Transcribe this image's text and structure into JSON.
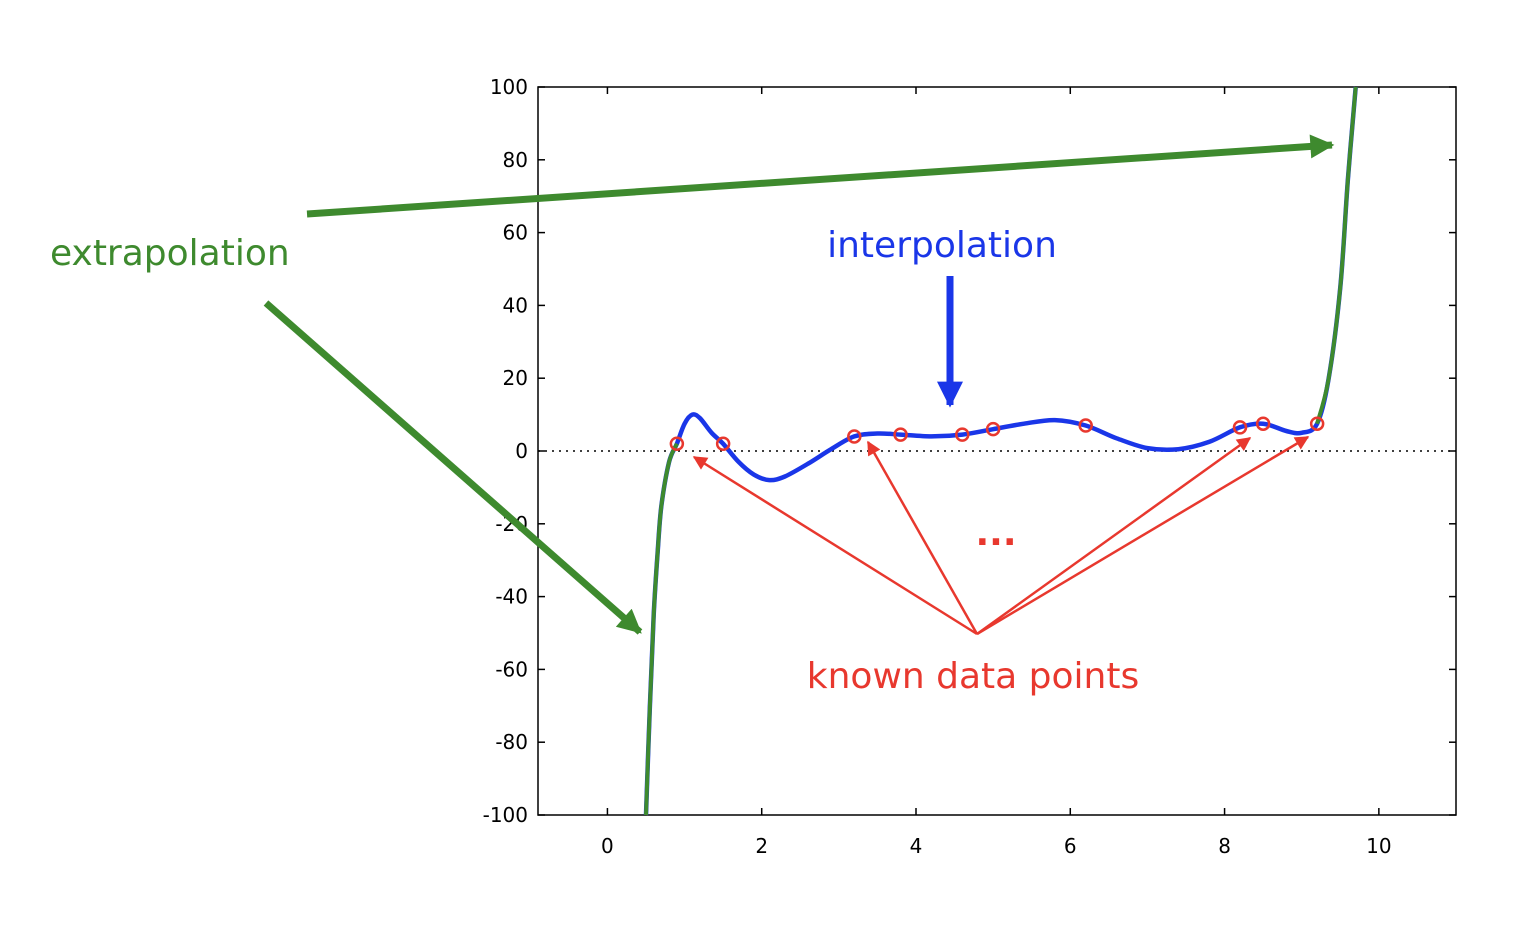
{
  "chart_data": {
    "type": "line",
    "title": "",
    "xlabel": "",
    "ylabel": "",
    "xlim": [
      -0.9,
      11.0
    ],
    "ylim": [
      -100,
      100
    ],
    "xticks": [
      "0",
      "2",
      "4",
      "6",
      "8",
      "10"
    ],
    "yticks": [
      "100",
      "80",
      "60",
      "40",
      "20",
      "0",
      "-20",
      "-40",
      "-60",
      "-80",
      "-100"
    ],
    "zero_line": "dotted",
    "known_points": [
      {
        "x": 0.9,
        "y": 2
      },
      {
        "x": 1.5,
        "y": 2
      },
      {
        "x": 3.2,
        "y": 4
      },
      {
        "x": 3.8,
        "y": 4.5
      },
      {
        "x": 4.6,
        "y": 4.5
      },
      {
        "x": 5.0,
        "y": 6
      },
      {
        "x": 6.2,
        "y": 7
      },
      {
        "x": 8.2,
        "y": 6.5
      },
      {
        "x": 8.5,
        "y": 7.5
      },
      {
        "x": 9.2,
        "y": 7.5
      }
    ],
    "interpolation_curve": [
      {
        "x": 0.5,
        "y": -100
      },
      {
        "x": 0.55,
        "y": -70
      },
      {
        "x": 0.6,
        "y": -45
      },
      {
        "x": 0.65,
        "y": -28
      },
      {
        "x": 0.7,
        "y": -15
      },
      {
        "x": 0.8,
        "y": -3
      },
      {
        "x": 0.9,
        "y": 2
      },
      {
        "x": 1.0,
        "y": 7.5
      },
      {
        "x": 1.1,
        "y": 10
      },
      {
        "x": 1.2,
        "y": 9
      },
      {
        "x": 1.35,
        "y": 5
      },
      {
        "x": 1.5,
        "y": 2
      },
      {
        "x": 1.7,
        "y": -3
      },
      {
        "x": 1.9,
        "y": -6.5
      },
      {
        "x": 2.1,
        "y": -8
      },
      {
        "x": 2.3,
        "y": -7
      },
      {
        "x": 2.6,
        "y": -3.5
      },
      {
        "x": 2.9,
        "y": 0.5
      },
      {
        "x": 3.2,
        "y": 4
      },
      {
        "x": 3.5,
        "y": 4.8
      },
      {
        "x": 3.8,
        "y": 4.5
      },
      {
        "x": 4.2,
        "y": 4
      },
      {
        "x": 4.6,
        "y": 4.5
      },
      {
        "x": 5.0,
        "y": 6
      },
      {
        "x": 5.4,
        "y": 7.5
      },
      {
        "x": 5.8,
        "y": 8.5
      },
      {
        "x": 6.2,
        "y": 7
      },
      {
        "x": 6.6,
        "y": 3.5
      },
      {
        "x": 7.0,
        "y": 0.8
      },
      {
        "x": 7.4,
        "y": 0.5
      },
      {
        "x": 7.8,
        "y": 2.5
      },
      {
        "x": 8.2,
        "y": 6.5
      },
      {
        "x": 8.5,
        "y": 7.5
      },
      {
        "x": 8.8,
        "y": 5.5
      },
      {
        "x": 9.0,
        "y": 5
      },
      {
        "x": 9.2,
        "y": 7.5
      },
      {
        "x": 9.35,
        "y": 20
      },
      {
        "x": 9.5,
        "y": 45
      },
      {
        "x": 9.6,
        "y": 75
      },
      {
        "x": 9.7,
        "y": 100
      }
    ],
    "extrapolation_left": [
      {
        "x": 0.5,
        "y": -100
      },
      {
        "x": 0.55,
        "y": -70
      },
      {
        "x": 0.6,
        "y": -45
      },
      {
        "x": 0.65,
        "y": -28
      },
      {
        "x": 0.7,
        "y": -15
      },
      {
        "x": 0.8,
        "y": -3
      },
      {
        "x": 0.9,
        "y": 2
      }
    ],
    "extrapolation_right": [
      {
        "x": 9.2,
        "y": 7.5
      },
      {
        "x": 9.35,
        "y": 20
      },
      {
        "x": 9.5,
        "y": 45
      },
      {
        "x": 9.6,
        "y": 75
      },
      {
        "x": 9.7,
        "y": 100
      }
    ],
    "colors": {
      "interpolation": "#1a36e8",
      "extrapolation": "#3e8a2e",
      "points": "#e8382e",
      "axis": "#000000"
    },
    "annotations": {
      "extrapolation": "extrapolation",
      "interpolation": "interpolation",
      "known_points": "known data points",
      "ellipsis": "..."
    }
  }
}
